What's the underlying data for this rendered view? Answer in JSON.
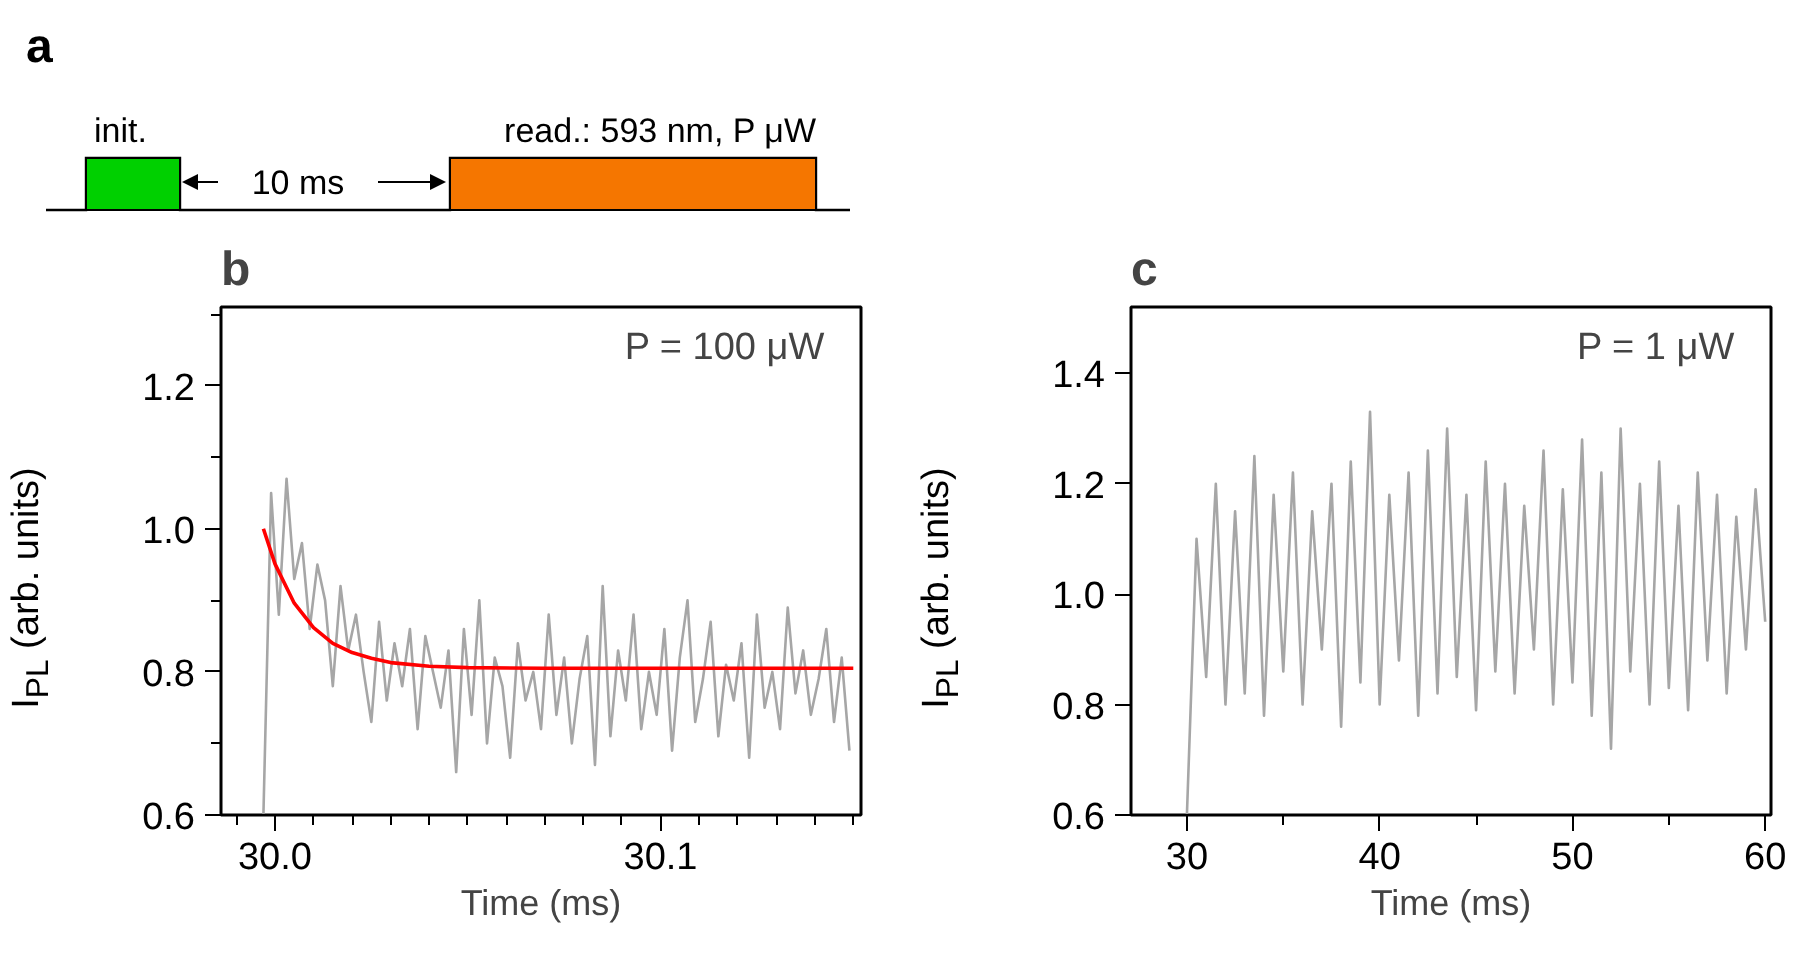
{
  "chart_data": [
    {
      "type": "other",
      "title": "a",
      "annotations": [
        "init.",
        "10 ms",
        "read.: 593 nm, P μW"
      ]
    },
    {
      "type": "line",
      "title": "b",
      "xlabel": "Time (ms)",
      "ylabel": "I$_{PL}$ (arb. units)",
      "annotations": [
        "P = 100 μW"
      ],
      "xlim": [
        29.986,
        30.152
      ],
      "ylim": [
        0.6,
        1.31
      ],
      "xticks": [
        {
          "value": 29.99,
          "label": null
        },
        {
          "value": 30.0,
          "label": "30.0"
        },
        {
          "value": 30.01,
          "label": null
        },
        {
          "value": 30.02,
          "label": null
        },
        {
          "value": 30.03,
          "label": null
        },
        {
          "value": 30.04,
          "label": null
        },
        {
          "value": 30.05,
          "label": null
        },
        {
          "value": 30.06,
          "label": null
        },
        {
          "value": 30.07,
          "label": null
        },
        {
          "value": 30.08,
          "label": null
        },
        {
          "value": 30.09,
          "label": null
        },
        {
          "value": 30.1,
          "label": "30.1"
        },
        {
          "value": 30.11,
          "label": null
        },
        {
          "value": 30.12,
          "label": null
        },
        {
          "value": 30.13,
          "label": null
        },
        {
          "value": 30.14,
          "label": null
        },
        {
          "value": 30.15,
          "label": null
        }
      ],
      "yticks": [
        0.6,
        {
          "value": 0.7,
          "label": null
        },
        0.8,
        {
          "value": 0.9,
          "label": null
        },
        {
          "value": 1.0,
          "label": "1.0"
        },
        {
          "value": 1.1,
          "label": null
        },
        1.2,
        {
          "value": 1.3,
          "label": null
        }
      ],
      "series": [
        {
          "color": "#a6a6a6",
          "x": [
            29.997,
            29.999,
            30.001,
            30.003,
            30.005,
            30.007,
            30.009,
            30.011,
            30.013,
            30.015,
            30.017,
            30.019,
            30.021,
            30.023,
            30.025,
            30.027,
            30.029,
            30.031,
            30.033,
            30.035,
            30.037,
            30.039,
            30.041,
            30.043,
            30.045,
            30.047,
            30.049,
            30.051,
            30.053,
            30.055,
            30.057,
            30.059,
            30.061,
            30.063,
            30.065,
            30.067,
            30.069,
            30.071,
            30.073,
            30.075,
            30.077,
            30.079,
            30.081,
            30.083,
            30.085,
            30.087,
            30.089,
            30.091,
            30.093,
            30.095,
            30.097,
            30.099,
            30.101,
            30.103,
            30.105,
            30.107,
            30.109,
            30.111,
            30.113,
            30.115,
            30.117,
            30.119,
            30.121,
            30.123,
            30.125,
            30.127,
            30.129,
            30.131,
            30.133,
            30.135,
            30.137,
            30.139,
            30.141,
            30.143,
            30.145,
            30.147,
            30.149
          ],
          "values": [
            0.6,
            1.05,
            0.88,
            1.07,
            0.93,
            0.98,
            0.86,
            0.95,
            0.9,
            0.78,
            0.92,
            0.83,
            0.88,
            0.8,
            0.73,
            0.87,
            0.76,
            0.84,
            0.78,
            0.86,
            0.72,
            0.85,
            0.8,
            0.75,
            0.83,
            0.66,
            0.86,
            0.74,
            0.9,
            0.7,
            0.82,
            0.78,
            0.68,
            0.84,
            0.76,
            0.8,
            0.72,
            0.88,
            0.74,
            0.82,
            0.7,
            0.79,
            0.85,
            0.67,
            0.92,
            0.71,
            0.83,
            0.76,
            0.88,
            0.72,
            0.8,
            0.74,
            0.86,
            0.69,
            0.82,
            0.9,
            0.73,
            0.79,
            0.87,
            0.71,
            0.81,
            0.76,
            0.84,
            0.68,
            0.88,
            0.75,
            0.8,
            0.72,
            0.89,
            0.77,
            0.83,
            0.74,
            0.79,
            0.86,
            0.73,
            0.82,
            0.69
          ]
        },
        {
          "color": "#ff0000",
          "x": [
            29.997,
            30.0,
            30.005,
            30.01,
            30.015,
            30.02,
            30.025,
            30.03,
            30.04,
            30.05,
            30.07,
            30.1,
            30.15
          ],
          "values": [
            1.0,
            0.951,
            0.896,
            0.862,
            0.84,
            0.827,
            0.819,
            0.813,
            0.808,
            0.806,
            0.805,
            0.805,
            0.805
          ]
        }
      ]
    },
    {
      "type": "line",
      "title": "c",
      "xlabel": "Time (ms)",
      "ylabel": "I$_{PL}$ (arb. units)",
      "annotations": [
        "P = 1 μW"
      ],
      "xlim": [
        27.1,
        60.3
      ],
      "ylim": [
        0.6,
        1.52
      ],
      "xticks": [
        30,
        {
          "value": 35,
          "label": null
        },
        40,
        {
          "value": 45,
          "label": null
        },
        50,
        {
          "value": 55,
          "label": null
        },
        60
      ],
      "yticks": [
        0.6,
        0.8,
        {
          "value": 1.0,
          "label": "1.0"
        },
        1.2,
        1.4
      ],
      "series": [
        {
          "color": "#a6a6a6",
          "x": [
            30.0,
            30.5,
            31.0,
            31.5,
            32.0,
            32.5,
            33.0,
            33.5,
            34.0,
            34.5,
            35.0,
            35.5,
            36.0,
            36.5,
            37.0,
            37.5,
            38.0,
            38.5,
            39.0,
            39.5,
            40.0,
            40.5,
            41.0,
            41.5,
            42.0,
            42.5,
            43.0,
            43.5,
            44.0,
            44.5,
            45.0,
            45.5,
            46.0,
            46.5,
            47.0,
            47.5,
            48.0,
            48.5,
            49.0,
            49.5,
            50.0,
            50.5,
            51.0,
            51.5,
            52.0,
            52.5,
            53.0,
            53.5,
            54.0,
            54.5,
            55.0,
            55.5,
            56.0,
            56.5,
            57.0,
            57.5,
            58.0,
            58.5,
            59.0,
            59.5,
            60.0
          ],
          "values": [
            0.6,
            1.1,
            0.85,
            1.2,
            0.8,
            1.15,
            0.82,
            1.25,
            0.78,
            1.18,
            0.86,
            1.22,
            0.8,
            1.15,
            0.9,
            1.2,
            0.76,
            1.24,
            0.84,
            1.33,
            0.8,
            1.18,
            0.88,
            1.22,
            0.78,
            1.26,
            0.82,
            1.3,
            0.85,
            1.18,
            0.79,
            1.24,
            0.86,
            1.2,
            0.82,
            1.16,
            0.9,
            1.26,
            0.8,
            1.19,
            0.84,
            1.28,
            0.78,
            1.22,
            0.72,
            1.3,
            0.86,
            1.2,
            0.8,
            1.24,
            0.83,
            1.16,
            0.79,
            1.22,
            0.88,
            1.18,
            0.82,
            1.14,
            0.9,
            1.19,
            0.95
          ]
        }
      ]
    }
  ]
}
